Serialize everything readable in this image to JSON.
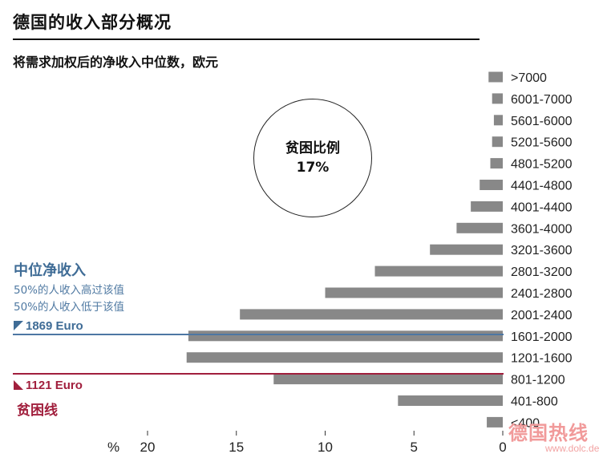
{
  "title": "德国的收入部分概况",
  "subtitle": "将需求加权后的净收入中位数，欧元",
  "poverty_rate": {
    "label": "贫困比例",
    "value": "17%"
  },
  "median_income": {
    "heading": "中位净收入",
    "note_above": "50%的人收入高过该值",
    "note_below": "50%的人收入低于该值",
    "value_label": "1869 Euro",
    "color": "#3f6c96"
  },
  "poverty_line": {
    "value_label": "1121 Euro",
    "heading": "贫困线",
    "color": "#a11f3d"
  },
  "watermark": {
    "text": "德国热线",
    "url": "www.dolc.de"
  },
  "chart_data": {
    "type": "bar",
    "orientation": "horizontal",
    "x_direction": "right-to-left",
    "xunit": "%",
    "xlim": [
      0,
      20
    ],
    "xticks": [
      "20",
      "15",
      "10",
      "5",
      "0"
    ],
    "bar_color": "#888888",
    "categories": [
      ">7000",
      "6001-7000",
      "5601-6000",
      "5201-5600",
      "4801-5200",
      "4401-4800",
      "4001-4400",
      "3601-4000",
      "3201-3600",
      "2801-3200",
      "2401-2800",
      "2001-2400",
      "1601-2000",
      "1201-1600",
      "801-1200",
      "401-800",
      "<400"
    ],
    "values": [
      0.8,
      0.6,
      0.5,
      0.6,
      0.7,
      1.3,
      1.8,
      2.6,
      4.1,
      7.2,
      10.0,
      14.8,
      17.7,
      17.8,
      12.9,
      5.9,
      0.9
    ]
  }
}
